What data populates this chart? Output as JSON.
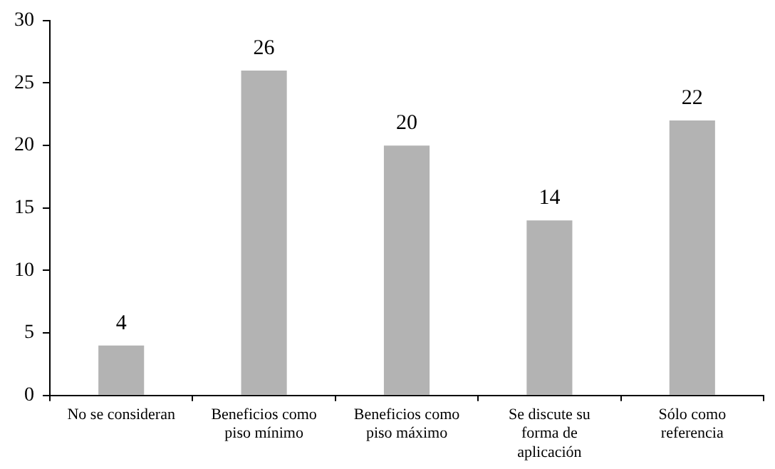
{
  "chart_data": {
    "type": "bar",
    "categories": [
      "No se consideran",
      "Beneficios como piso mínimo",
      "Beneficios como piso máximo",
      "Se discute su forma de aplicación",
      "Sólo como referencia"
    ],
    "values": [
      4,
      26,
      20,
      14,
      22
    ],
    "color": "#b3b3b3",
    "ylim": [
      0,
      30
    ],
    "yticks": [
      0,
      5,
      10,
      15,
      20,
      25,
      30
    ],
    "grid": false,
    "data_labels": true
  }
}
